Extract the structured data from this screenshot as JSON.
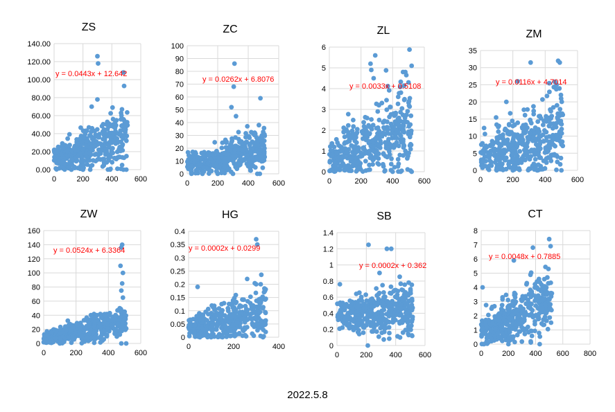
{
  "footer_text": "2022.5.8",
  "colors": {
    "marker": "#5B9BD5",
    "trendline_text": "#FF0000",
    "grid": "#D9D9D9",
    "axis_text": "#000000"
  },
  "chart_data": [
    {
      "type": "scatter",
      "title": "ZS",
      "trendline_label": "y = 0.0443x + 12.642",
      "slope": 0.0443,
      "intercept": 12.642,
      "xlim": [
        0,
        600
      ],
      "xticks": [
        0,
        200,
        400,
        600
      ],
      "ylim": [
        0,
        140
      ],
      "yticks": [
        "0.00",
        "20.00",
        "40.00",
        "60.00",
        "80.00",
        "100.00",
        "120.00",
        "140.00"
      ],
      "npoints": 420,
      "xmax_data": 510,
      "noise": 12,
      "outliers": [
        [
          300,
          126
        ],
        [
          305,
          118
        ],
        [
          480,
          108
        ],
        [
          485,
          93
        ],
        [
          470,
          67
        ],
        [
          300,
          78
        ],
        [
          260,
          70
        ],
        [
          400,
          30
        ],
        [
          120,
          0
        ],
        [
          200,
          0
        ],
        [
          250,
          0
        ],
        [
          480,
          0
        ],
        [
          500,
          0
        ]
      ]
    },
    {
      "type": "scatter",
      "title": "ZC",
      "trendline_label": "y = 0.0262x + 6.8076",
      "slope": 0.0262,
      "intercept": 6.8076,
      "xlim": [
        0,
        600
      ],
      "xticks": [
        0,
        200,
        400,
        600
      ],
      "ylim": [
        0,
        100
      ],
      "yticks": [
        "0",
        "10",
        "20",
        "30",
        "40",
        "50",
        "60",
        "70",
        "80",
        "90",
        "100"
      ],
      "npoints": 420,
      "xmax_data": 510,
      "noise": 6,
      "outliers": [
        [
          310,
          86
        ],
        [
          305,
          68
        ],
        [
          480,
          59
        ],
        [
          290,
          52
        ],
        [
          320,
          45
        ],
        [
          470,
          38
        ],
        [
          100,
          0
        ],
        [
          200,
          0
        ],
        [
          460,
          0
        ],
        [
          300,
          0
        ]
      ]
    },
    {
      "type": "scatter",
      "title": "ZL",
      "trendline_label": "y = 0.0033x + 0.5108",
      "slope": 0.0033,
      "intercept": 0.5108,
      "xlim": [
        0,
        600
      ],
      "xticks": [
        0,
        200,
        400,
        600
      ],
      "ylim": [
        0,
        6
      ],
      "yticks": [
        "0",
        "1",
        "2",
        "3",
        "4",
        "5",
        "6"
      ],
      "npoints": 430,
      "xmax_data": 520,
      "noise": 0.8,
      "outliers": [
        [
          290,
          5.6
        ],
        [
          260,
          5.2
        ],
        [
          265,
          4.9
        ],
        [
          520,
          5.1
        ],
        [
          480,
          4.8
        ],
        [
          500,
          4.3
        ],
        [
          280,
          4.5
        ],
        [
          400,
          0
        ],
        [
          450,
          0
        ],
        [
          520,
          0
        ]
      ]
    },
    {
      "type": "scatter",
      "title": "ZM",
      "trendline_label": "y = 0.0116x + 4.7014",
      "slope": 0.0116,
      "intercept": 4.7014,
      "xlim": [
        0,
        600
      ],
      "xticks": [
        0,
        200,
        400,
        600
      ],
      "ylim": [
        0,
        35
      ],
      "yticks": [
        "0",
        "5",
        "10",
        "15",
        "20",
        "25",
        "30",
        "35"
      ],
      "npoints": 420,
      "xmax_data": 510,
      "noise": 4.5,
      "outliers": [
        [
          480,
          32
        ],
        [
          490,
          31.5
        ],
        [
          310,
          31.5
        ],
        [
          230,
          26
        ],
        [
          470,
          25
        ],
        [
          160,
          20
        ],
        [
          100,
          0
        ],
        [
          200,
          0
        ],
        [
          350,
          0
        ],
        [
          500,
          0
        ]
      ]
    },
    {
      "type": "scatter",
      "title": "ZW",
      "trendline_label": "y = 0.0524x + 6.3364",
      "slope": 0.0524,
      "intercept": 6.3364,
      "xlim": [
        0,
        600
      ],
      "xticks": [
        0,
        200,
        400,
        600
      ],
      "ylim": [
        0,
        160
      ],
      "yticks": [
        "0",
        "20",
        "40",
        "60",
        "80",
        "100",
        "120",
        "140",
        "160"
      ],
      "npoints": 420,
      "xmax_data": 510,
      "noise": 8,
      "outliers": [
        [
          485,
          140
        ],
        [
          480,
          136
        ],
        [
          475,
          110
        ],
        [
          490,
          100
        ],
        [
          485,
          85
        ],
        [
          480,
          75
        ],
        [
          490,
          65
        ],
        [
          470,
          50
        ],
        [
          500,
          45
        ],
        [
          100,
          0
        ],
        [
          480,
          0
        ],
        [
          510,
          0
        ]
      ]
    },
    {
      "type": "scatter",
      "title": "HG",
      "trendline_label": "y = 0.0002x + 0.0299",
      "slope": 0.0002,
      "intercept": 0.0299,
      "xlim": [
        0,
        400
      ],
      "xticks": [
        0,
        200,
        400
      ],
      "ylim": [
        0,
        0.4
      ],
      "yticks": [
        "0",
        "0.05",
        "0.1",
        "0.15",
        "0.2",
        "0.25",
        "0.3",
        "0.35",
        "0.4"
      ],
      "npoints": 380,
      "xmax_data": 345,
      "noise": 0.035,
      "outliers": [
        [
          300,
          0.37
        ],
        [
          305,
          0.35
        ],
        [
          260,
          0.22
        ],
        [
          320,
          0.2
        ],
        [
          40,
          0.19
        ],
        [
          50,
          0
        ],
        [
          100,
          0
        ],
        [
          150,
          0
        ],
        [
          330,
          0
        ]
      ]
    },
    {
      "type": "scatter",
      "title": "SB",
      "trendline_label": "y = 0.0002x + 0.362",
      "slope": 0.0002,
      "intercept": 0.362,
      "xlim": [
        0,
        600
      ],
      "xticks": [
        0,
        200,
        400,
        600
      ],
      "ylim": [
        0,
        1.4
      ],
      "yticks": [
        "0",
        "0.2",
        "0.4",
        "0.6",
        "0.8",
        "1",
        "1.2",
        "1.4"
      ],
      "npoints": 430,
      "xmax_data": 520,
      "noise": 0.13,
      "outliers": [
        [
          215,
          1.25
        ],
        [
          340,
          1.2
        ],
        [
          370,
          1.2
        ],
        [
          290,
          0.9
        ],
        [
          20,
          0.76
        ],
        [
          210,
          0
        ],
        [
          430,
          0.1
        ]
      ]
    },
    {
      "type": "scatter",
      "title": "CT",
      "trendline_label": "y = 0.0048x + 0.7885",
      "slope": 0.0048,
      "intercept": 0.7885,
      "xlim": [
        0,
        800
      ],
      "xticks": [
        0,
        200,
        400,
        600,
        800
      ],
      "ylim": [
        0,
        8
      ],
      "yticks": [
        "0",
        "1",
        "2",
        "3",
        "4",
        "5",
        "6",
        "7",
        "8"
      ],
      "npoints": 420,
      "xmax_data": 520,
      "noise": 0.9,
      "outliers": [
        [
          500,
          7.4
        ],
        [
          380,
          6.8
        ],
        [
          510,
          6.9
        ],
        [
          240,
          5.9
        ],
        [
          10,
          4
        ],
        [
          20,
          0
        ],
        [
          200,
          0
        ],
        [
          430,
          0
        ]
      ]
    }
  ]
}
